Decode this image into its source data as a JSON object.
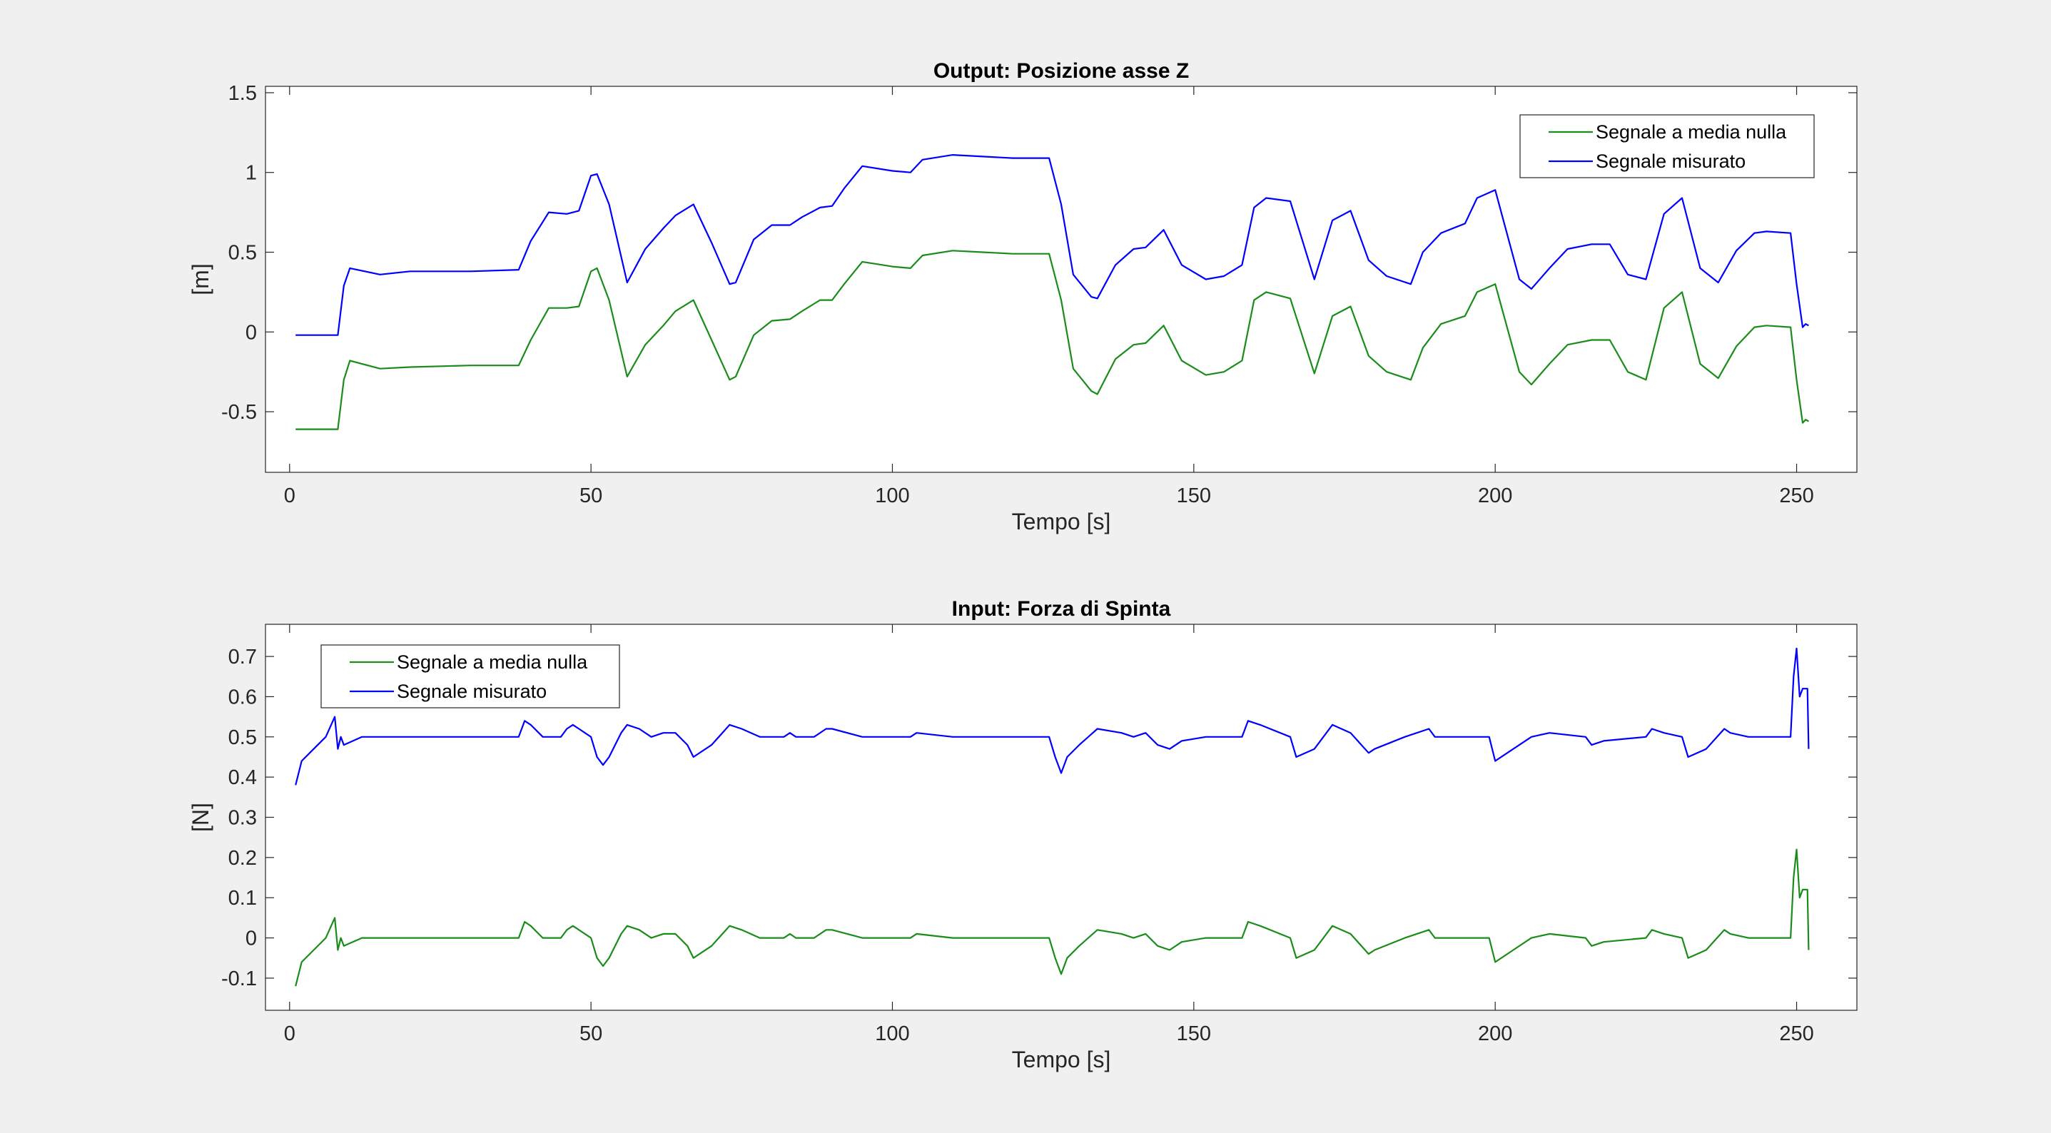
{
  "figure": {
    "background": "#f0f0f0",
    "axes_background": "#ffffff"
  },
  "chart_data": [
    {
      "type": "line",
      "title": "Output: Posizione asse Z",
      "xlabel": "Tempo [s]",
      "ylabel": "[m]",
      "xlim": [
        -4,
        260
      ],
      "ylim": [
        -0.88,
        1.54
      ],
      "xticks": [
        0,
        50,
        100,
        150,
        200,
        250
      ],
      "xtick_labels": [
        "0",
        "50",
        "100",
        "150",
        "200",
        "250"
      ],
      "yticks": [
        -0.5,
        0,
        0.5,
        1,
        1.5
      ],
      "ytick_labels": [
        "-0.5",
        "0",
        "0.5",
        "1",
        "1.5"
      ],
      "legend": {
        "position": "top-right",
        "entries": [
          "Segnale a media nulla",
          "Segnale misurato"
        ]
      },
      "series": [
        {
          "name": "Segnale a media nulla",
          "color": "#1a8c1a",
          "x": [
            1,
            8,
            9,
            10,
            15,
            20,
            30,
            38,
            40,
            43,
            46,
            48,
            50,
            51,
            53,
            56,
            59,
            62,
            64,
            67,
            70,
            73,
            74,
            77,
            80,
            83,
            85,
            88,
            90,
            92,
            95,
            100,
            103,
            105,
            110,
            115,
            120,
            126,
            128,
            130,
            133,
            134,
            137,
            140,
            142,
            145,
            148,
            152,
            155,
            158,
            160,
            162,
            166,
            170,
            173,
            176,
            179,
            182,
            186,
            188,
            191,
            195,
            197,
            200,
            204,
            206,
            209,
            212,
            216,
            219,
            222,
            225,
            228,
            231,
            234,
            237,
            240,
            243,
            245,
            249,
            250,
            251,
            251.5,
            252
          ],
          "y": [
            -0.61,
            -0.61,
            -0.3,
            -0.18,
            -0.23,
            -0.22,
            -0.21,
            -0.21,
            -0.05,
            0.15,
            0.15,
            0.16,
            0.38,
            0.4,
            0.2,
            -0.28,
            -0.08,
            0.04,
            0.13,
            0.2,
            -0.05,
            -0.3,
            -0.28,
            -0.02,
            0.07,
            0.08,
            0.13,
            0.2,
            0.2,
            0.3,
            0.44,
            0.41,
            0.4,
            0.48,
            0.51,
            0.5,
            0.49,
            0.49,
            0.2,
            -0.23,
            -0.37,
            -0.39,
            -0.17,
            -0.08,
            -0.07,
            0.04,
            -0.18,
            -0.27,
            -0.25,
            -0.18,
            0.2,
            0.25,
            0.21,
            -0.26,
            0.1,
            0.16,
            -0.15,
            -0.25,
            -0.3,
            -0.1,
            0.05,
            0.1,
            0.25,
            0.3,
            -0.25,
            -0.33,
            -0.2,
            -0.08,
            -0.05,
            -0.05,
            -0.25,
            -0.3,
            0.15,
            0.25,
            -0.2,
            -0.29,
            -0.09,
            0.03,
            0.04,
            0.03,
            -0.3,
            -0.57,
            -0.55,
            -0.56
          ]
        },
        {
          "name": "Segnale misurato",
          "color": "#0000ff",
          "x": [
            1,
            8,
            9,
            10,
            15,
            20,
            30,
            38,
            40,
            43,
            46,
            48,
            50,
            51,
            53,
            56,
            59,
            62,
            64,
            67,
            70,
            73,
            74,
            77,
            80,
            83,
            85,
            88,
            90,
            92,
            95,
            100,
            103,
            105,
            110,
            115,
            120,
            126,
            128,
            130,
            133,
            134,
            137,
            140,
            142,
            145,
            148,
            152,
            155,
            158,
            160,
            162,
            166,
            170,
            173,
            176,
            179,
            182,
            186,
            188,
            191,
            195,
            197,
            200,
            204,
            206,
            209,
            212,
            216,
            219,
            222,
            225,
            228,
            231,
            234,
            237,
            240,
            243,
            245,
            249,
            250,
            251,
            251.5,
            252
          ],
          "y": [
            -0.02,
            -0.02,
            0.29,
            0.4,
            0.36,
            0.38,
            0.38,
            0.39,
            0.57,
            0.75,
            0.74,
            0.76,
            0.98,
            0.99,
            0.8,
            0.31,
            0.52,
            0.65,
            0.73,
            0.8,
            0.56,
            0.3,
            0.31,
            0.58,
            0.67,
            0.67,
            0.72,
            0.78,
            0.79,
            0.9,
            1.04,
            1.01,
            1.0,
            1.08,
            1.11,
            1.1,
            1.09,
            1.09,
            0.8,
            0.36,
            0.22,
            0.21,
            0.42,
            0.52,
            0.53,
            0.64,
            0.42,
            0.33,
            0.35,
            0.42,
            0.78,
            0.84,
            0.82,
            0.33,
            0.7,
            0.76,
            0.45,
            0.35,
            0.3,
            0.5,
            0.62,
            0.68,
            0.84,
            0.89,
            0.33,
            0.27,
            0.4,
            0.52,
            0.55,
            0.55,
            0.36,
            0.33,
            0.74,
            0.84,
            0.4,
            0.31,
            0.51,
            0.62,
            0.63,
            0.62,
            0.3,
            0.03,
            0.05,
            0.04
          ]
        }
      ]
    },
    {
      "type": "line",
      "title": "Input: Forza di Spinta",
      "xlabel": "Tempo [s]",
      "ylabel": "[N]",
      "xlim": [
        -4,
        260
      ],
      "ylim": [
        -0.18,
        0.78
      ],
      "xticks": [
        0,
        50,
        100,
        150,
        200,
        250
      ],
      "xtick_labels": [
        "0",
        "50",
        "100",
        "150",
        "200",
        "250"
      ],
      "yticks": [
        -0.1,
        0,
        0.1,
        0.2,
        0.3,
        0.4,
        0.5,
        0.6,
        0.7
      ],
      "ytick_labels": [
        "-0.1",
        "0",
        "0.1",
        "0.2",
        "0.3",
        "0.4",
        "0.5",
        "0.6",
        "0.7"
      ],
      "legend": {
        "position": "top-left",
        "entries": [
          "Segnale a media nulla",
          "Segnale misurato"
        ]
      },
      "series": [
        {
          "name": "Segnale a media nulla",
          "color": "#1a8c1a",
          "x": [
            1,
            2,
            4,
            6,
            7.5,
            8,
            8.5,
            9,
            12,
            20,
            38,
            39,
            40,
            42,
            45,
            46,
            47,
            48,
            50,
            51,
            52,
            53,
            55,
            56,
            58,
            60,
            62,
            64,
            66,
            67,
            70,
            73,
            75,
            78,
            82,
            83,
            84,
            87,
            89,
            90,
            95,
            100,
            103,
            104,
            110,
            120,
            126,
            127,
            128,
            129,
            131,
            134,
            138,
            140,
            142,
            144,
            146,
            148,
            152,
            158,
            159,
            161,
            166,
            167,
            170,
            173,
            176,
            179,
            180,
            185,
            189,
            190,
            193,
            199,
            200,
            203,
            206,
            209,
            215,
            216,
            218,
            225,
            226,
            228,
            231,
            232,
            235,
            238,
            239,
            242,
            249,
            249.5,
            250,
            250.5,
            251,
            251.5,
            251.8,
            252
          ],
          "y": [
            -0.12,
            -0.06,
            -0.03,
            0.0,
            0.05,
            -0.03,
            0.0,
            -0.02,
            0.0,
            0.0,
            0.0,
            0.04,
            0.03,
            0.0,
            0.0,
            0.02,
            0.03,
            0.02,
            0.0,
            -0.05,
            -0.07,
            -0.05,
            0.01,
            0.03,
            0.02,
            0.0,
            0.01,
            0.01,
            -0.02,
            -0.05,
            -0.02,
            0.03,
            0.02,
            0.0,
            0.0,
            0.01,
            0.0,
            0.0,
            0.02,
            0.02,
            0.0,
            0.0,
            0.0,
            0.01,
            0.0,
            0.0,
            0.0,
            -0.05,
            -0.09,
            -0.05,
            -0.02,
            0.02,
            0.01,
            0.0,
            0.01,
            -0.02,
            -0.03,
            -0.01,
            0.0,
            0.0,
            0.04,
            0.03,
            0.0,
            -0.05,
            -0.03,
            0.03,
            0.01,
            -0.04,
            -0.03,
            0.0,
            0.02,
            0.0,
            0.0,
            0.0,
            -0.06,
            -0.03,
            0.0,
            0.01,
            0.0,
            -0.02,
            -0.01,
            0.0,
            0.02,
            0.01,
            0.0,
            -0.05,
            -0.03,
            0.02,
            0.01,
            0.0,
            0.0,
            0.15,
            0.22,
            0.1,
            0.12,
            0.12,
            0.12,
            -0.03
          ]
        },
        {
          "name": "Segnale misurato",
          "color": "#0000ff",
          "x": [
            1,
            2,
            4,
            6,
            7.5,
            8,
            8.5,
            9,
            12,
            20,
            38,
            39,
            40,
            42,
            45,
            46,
            47,
            48,
            50,
            51,
            52,
            53,
            55,
            56,
            58,
            60,
            62,
            64,
            66,
            67,
            70,
            73,
            75,
            78,
            82,
            83,
            84,
            87,
            89,
            90,
            95,
            100,
            103,
            104,
            110,
            120,
            126,
            127,
            128,
            129,
            131,
            134,
            138,
            140,
            142,
            144,
            146,
            148,
            152,
            158,
            159,
            161,
            166,
            167,
            170,
            173,
            176,
            179,
            180,
            185,
            189,
            190,
            193,
            199,
            200,
            203,
            206,
            209,
            215,
            216,
            218,
            225,
            226,
            228,
            231,
            232,
            235,
            238,
            239,
            242,
            249,
            249.5,
            250,
            250.5,
            251,
            251.5,
            251.8,
            252
          ],
          "y": [
            0.38,
            0.44,
            0.47,
            0.5,
            0.55,
            0.47,
            0.5,
            0.48,
            0.5,
            0.5,
            0.5,
            0.54,
            0.53,
            0.5,
            0.5,
            0.52,
            0.53,
            0.52,
            0.5,
            0.45,
            0.43,
            0.45,
            0.51,
            0.53,
            0.52,
            0.5,
            0.51,
            0.51,
            0.48,
            0.45,
            0.48,
            0.53,
            0.52,
            0.5,
            0.5,
            0.51,
            0.5,
            0.5,
            0.52,
            0.52,
            0.5,
            0.5,
            0.5,
            0.51,
            0.5,
            0.5,
            0.5,
            0.45,
            0.41,
            0.45,
            0.48,
            0.52,
            0.51,
            0.5,
            0.51,
            0.48,
            0.47,
            0.49,
            0.5,
            0.5,
            0.54,
            0.53,
            0.5,
            0.45,
            0.47,
            0.53,
            0.51,
            0.46,
            0.47,
            0.5,
            0.52,
            0.5,
            0.5,
            0.5,
            0.44,
            0.47,
            0.5,
            0.51,
            0.5,
            0.48,
            0.49,
            0.5,
            0.52,
            0.51,
            0.5,
            0.45,
            0.47,
            0.52,
            0.51,
            0.5,
            0.5,
            0.65,
            0.72,
            0.6,
            0.62,
            0.62,
            0.62,
            0.47
          ]
        }
      ]
    }
  ]
}
